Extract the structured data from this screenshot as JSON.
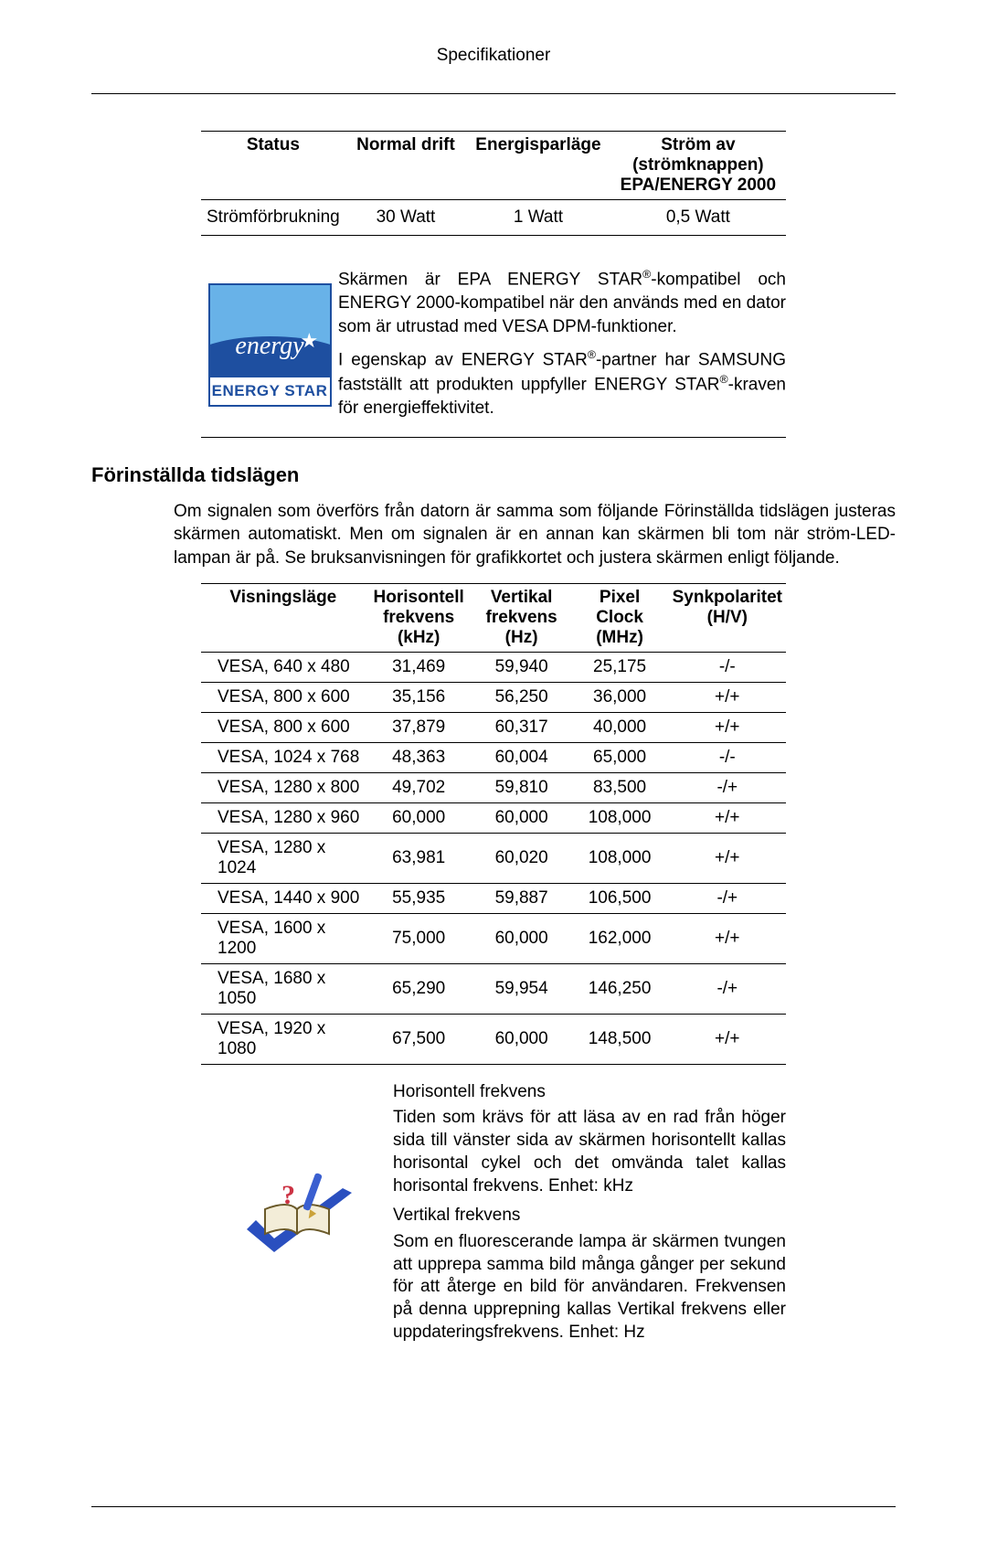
{
  "page_header": "Specifikationer",
  "power_table": {
    "headers": [
      "Status",
      "Normal drift",
      "Energisparläge",
      "Ström av (strömknappen) EPA/ENERGY 2000"
    ],
    "row_label": "Strömförbrukning",
    "values": [
      "30 Watt",
      "1 Watt",
      "0,5 Watt"
    ]
  },
  "energy_star": {
    "logo_script": "energy",
    "logo_text": "ENERGY STAR",
    "para1_pre": "Skärmen är EPA ENERGY STAR",
    "para1_post": "-kompatibel och ENERGY 2000-kompatibel när den används med en dator som är utrustad med VESA DPM-funktioner.",
    "para2_a": "I egenskap av ENERGY STAR",
    "para2_b": "-partner har SAMSUNG fastställt att produkten uppfyller ENERGY STAR",
    "para2_c": "-kraven för energieffektivitet."
  },
  "section_heading": "Förinställda tidslägen",
  "section_para": "Om signalen som överförs från datorn är samma som följande Förinställda tidslägen justeras skärmen automatiskt. Men om signalen är en annan kan skärmen bli tom när ström-LED-lampan är på. Se bruksanvisningen för grafikkortet och justera skärmen enligt följande.",
  "timing_headers": [
    "Visningsläge",
    "Horisontell frekvens (kHz)",
    "Vertikal frekvens (Hz)",
    "Pixel Clock (MHz)",
    "Synkpolaritet (H/V)"
  ],
  "timing_rows": [
    {
      "mode": "VESA, 640 x 480",
      "h": "31,469",
      "v": "59,940",
      "pc": "25,175",
      "sp": "-/-"
    },
    {
      "mode": "VESA, 800 x 600",
      "h": "35,156",
      "v": "56,250",
      "pc": "36,000",
      "sp": "+/+"
    },
    {
      "mode": "VESA, 800 x 600",
      "h": "37,879",
      "v": "60,317",
      "pc": "40,000",
      "sp": "+/+"
    },
    {
      "mode": "VESA, 1024 x 768",
      "h": "48,363",
      "v": "60,004",
      "pc": "65,000",
      "sp": "-/-"
    },
    {
      "mode": "VESA, 1280 x 800",
      "h": "49,702",
      "v": "59,810",
      "pc": "83,500",
      "sp": "-/+"
    },
    {
      "mode": "VESA, 1280 x 960",
      "h": "60,000",
      "v": "60,000",
      "pc": "108,000",
      "sp": "+/+"
    },
    {
      "mode": "VESA, 1280 x 1024",
      "h": "63,981",
      "v": "60,020",
      "pc": "108,000",
      "sp": "+/+"
    },
    {
      "mode": "VESA, 1440 x 900",
      "h": "55,935",
      "v": "59,887",
      "pc": "106,500",
      "sp": "-/+"
    },
    {
      "mode": "VESA, 1600 x 1200",
      "h": "75,000",
      "v": "60,000",
      "pc": "162,000",
      "sp": "+/+"
    },
    {
      "mode": "VESA, 1680 x 1050",
      "h": "65,290",
      "v": "59,954",
      "pc": "146,250",
      "sp": "-/+"
    },
    {
      "mode": "VESA, 1920 x 1080",
      "h": "67,500",
      "v": "60,000",
      "pc": "148,500",
      "sp": "+/+"
    }
  ],
  "freq": {
    "h_title": "Horisontell frekvens",
    "h_body": "Tiden som krävs för att läsa av en rad från höger sida till vänster sida av skärmen horisontellt kallas horisontal cykel och det omvända talet kallas horisontal frekvens. Enhet: kHz",
    "v_title": "Vertikal frekvens",
    "v_body": "Som en fluorescerande lampa är skärmen tvungen att upprepa samma bild många gånger per sekund för att återge en bild för användaren. Frekvensen på denna upprepning kallas Vertikal frekvens eller uppdateringsfrekvens. Enhet: Hz"
  },
  "colors": {
    "text": "#000000",
    "bg": "#ffffff",
    "energy_blue_dark": "#1e4fa0",
    "energy_blue_light": "#68b2e8"
  }
}
